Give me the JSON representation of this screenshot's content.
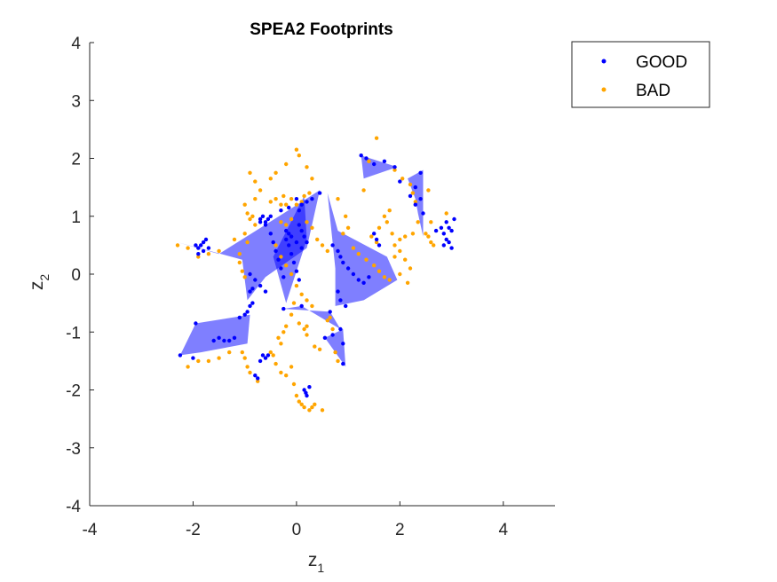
{
  "chart_data": {
    "type": "scatter",
    "title": "SPEA2 Footprints",
    "xlabel": "z",
    "xlabel_sub": "1",
    "ylabel": "z",
    "ylabel_sub": "2",
    "xlim": [
      -4,
      5
    ],
    "ylim": [
      -4,
      4
    ],
    "xticks": [
      -4,
      -2,
      0,
      2,
      4
    ],
    "yticks": [
      -4,
      -3,
      -2,
      -1,
      0,
      1,
      2,
      3,
      4
    ],
    "grid": false,
    "legend": {
      "position": "top-right-outside",
      "entries": [
        "GOOD",
        "BAD"
      ]
    },
    "colors": {
      "GOOD": "#0000ff",
      "BAD": "#ffa500",
      "footprint_fill": "#0000ff",
      "footprint_opacity": 0.5
    },
    "footprints": [
      [
        [
          -2.3,
          0.55
        ],
        [
          -1.5,
          0.35
        ],
        [
          -0.25,
          1.05
        ],
        [
          0.45,
          1.45
        ],
        [
          0.2,
          0.45
        ],
        [
          -0.6,
          -0.05
        ],
        [
          -0.95,
          -0.45
        ],
        [
          -1.05,
          0.25
        ]
      ],
      [
        [
          -0.45,
          0.3
        ],
        [
          0.15,
          1.35
        ],
        [
          0.2,
          0.6
        ],
        [
          -0.2,
          -0.5
        ]
      ],
      [
        [
          0.6,
          1.4
        ],
        [
          0.8,
          0.75
        ],
        [
          1.75,
          0.3
        ],
        [
          1.95,
          -0.1
        ],
        [
          1.3,
          -0.45
        ],
        [
          0.75,
          -0.55
        ],
        [
          0.75,
          0.1
        ]
      ],
      [
        [
          -0.25,
          -0.6
        ],
        [
          0.65,
          -0.65
        ],
        [
          0.85,
          -0.95
        ],
        [
          0.1,
          -0.55
        ]
      ],
      [
        [
          -2.25,
          -1.4
        ],
        [
          -1.95,
          -0.85
        ],
        [
          -0.9,
          -0.7
        ],
        [
          -0.95,
          -1.2
        ],
        [
          -1.85,
          -1.35
        ]
      ],
      [
        [
          0.55,
          -1.1
        ],
        [
          0.9,
          -0.95
        ],
        [
          0.95,
          -1.6
        ]
      ],
      [
        [
          1.25,
          2.05
        ],
        [
          1.95,
          1.85
        ],
        [
          1.3,
          1.65
        ]
      ],
      [
        [
          2.15,
          1.65
        ],
        [
          2.3,
          1.3
        ],
        [
          2.35,
          1.05
        ],
        [
          2.45,
          0.65
        ],
        [
          2.45,
          1.8
        ]
      ]
    ],
    "series": [
      {
        "name": "GOOD",
        "points": [
          [
            -1.9,
            0.45
          ],
          [
            -1.85,
            0.5
          ],
          [
            -1.8,
            0.55
          ],
          [
            -1.75,
            0.6
          ],
          [
            -1.7,
            0.45
          ],
          [
            -1.8,
            0.4
          ],
          [
            -1.9,
            0.35
          ],
          [
            -1.95,
            0.5
          ],
          [
            -0.7,
            0.95
          ],
          [
            -0.65,
            1.0
          ],
          [
            -0.6,
            0.9
          ],
          [
            -0.55,
            0.95
          ],
          [
            -0.5,
            1.0
          ],
          [
            -0.7,
            0.9
          ],
          [
            -0.6,
            0.85
          ],
          [
            -0.5,
            0.7
          ],
          [
            -0.45,
            0.55
          ],
          [
            -0.4,
            0.4
          ],
          [
            -0.35,
            0.25
          ],
          [
            -0.3,
            0.1
          ],
          [
            -0.25,
            -0.05
          ],
          [
            -0.2,
            0.6
          ],
          [
            -0.15,
            0.5
          ],
          [
            -0.1,
            0.35
          ],
          [
            -0.05,
            0.2
          ],
          [
            0.0,
            0.05
          ],
          [
            0.05,
            -0.1
          ],
          [
            -0.2,
            0.75
          ],
          [
            -0.15,
            0.7
          ],
          [
            -0.1,
            0.65
          ],
          [
            0.0,
            0.55
          ],
          [
            0.1,
            0.45
          ],
          [
            -0.9,
            0.0
          ],
          [
            -0.8,
            -0.1
          ],
          [
            -0.7,
            -0.2
          ],
          [
            -0.6,
            -0.3
          ],
          [
            -0.9,
            -0.3
          ],
          [
            -0.85,
            -0.25
          ],
          [
            0.0,
            1.3
          ],
          [
            0.1,
            1.2
          ],
          [
            0.05,
            1.1
          ],
          [
            0.2,
            1.25
          ],
          [
            0.3,
            1.3
          ],
          [
            0.45,
            1.4
          ],
          [
            -0.3,
            1.1
          ],
          [
            -0.15,
            1.15
          ],
          [
            0.05,
            0.85
          ],
          [
            0.1,
            0.75
          ],
          [
            0.15,
            0.65
          ],
          [
            0.2,
            0.55
          ],
          [
            0.7,
            0.5
          ],
          [
            0.8,
            0.4
          ],
          [
            0.85,
            0.3
          ],
          [
            0.9,
            0.2
          ],
          [
            1.0,
            0.1
          ],
          [
            1.1,
            0.0
          ],
          [
            1.2,
            -0.1
          ],
          [
            1.3,
            -0.15
          ],
          [
            1.4,
            -0.05
          ],
          [
            0.8,
            -0.3
          ],
          [
            0.85,
            -0.45
          ],
          [
            0.95,
            -0.55
          ],
          [
            1.5,
            0.7
          ],
          [
            1.55,
            0.6
          ],
          [
            1.6,
            0.5
          ],
          [
            1.25,
            2.05
          ],
          [
            1.35,
            2.0
          ],
          [
            1.5,
            1.9
          ],
          [
            1.7,
            1.95
          ],
          [
            1.9,
            1.85
          ],
          [
            2.0,
            1.6
          ],
          [
            2.3,
            1.5
          ],
          [
            2.4,
            1.3
          ],
          [
            2.45,
            1.05
          ],
          [
            2.3,
            1.2
          ],
          [
            2.2,
            1.35
          ],
          [
            2.4,
            1.75
          ],
          [
            2.8,
            0.8
          ],
          [
            2.85,
            0.7
          ],
          [
            2.9,
            0.9
          ],
          [
            2.95,
            0.8
          ],
          [
            3.0,
            0.75
          ],
          [
            3.05,
            0.95
          ],
          [
            2.9,
            0.6
          ],
          [
            2.85,
            0.5
          ],
          [
            2.95,
            0.55
          ],
          [
            3.0,
            0.45
          ],
          [
            2.7,
            0.75
          ],
          [
            -2.25,
            -1.4
          ],
          [
            -2.0,
            -1.45
          ],
          [
            -1.95,
            -0.85
          ],
          [
            -1.6,
            -1.15
          ],
          [
            -1.5,
            -1.1
          ],
          [
            -1.4,
            -1.15
          ],
          [
            -1.3,
            -1.15
          ],
          [
            -1.2,
            -1.1
          ],
          [
            -1.1,
            -0.75
          ],
          [
            -1.0,
            -0.7
          ],
          [
            -0.95,
            -0.65
          ],
          [
            -0.9,
            -0.55
          ],
          [
            -0.85,
            -0.5
          ],
          [
            -0.65,
            -1.4
          ],
          [
            -0.6,
            -1.45
          ],
          [
            -0.55,
            -1.4
          ],
          [
            -0.7,
            -1.5
          ],
          [
            -0.8,
            -1.75
          ],
          [
            -0.75,
            -1.8
          ],
          [
            0.15,
            -2.0
          ],
          [
            0.2,
            -2.1
          ],
          [
            0.25,
            -1.95
          ],
          [
            0.18,
            -2.05
          ],
          [
            0.55,
            -1.1
          ],
          [
            0.7,
            -1.05
          ],
          [
            0.9,
            -1.2
          ],
          [
            0.9,
            -1.55
          ],
          [
            0.85,
            -0.95
          ],
          [
            -0.25,
            -0.6
          ],
          [
            0.1,
            -0.55
          ],
          [
            0.65,
            -0.65
          ]
        ]
      },
      {
        "name": "BAD",
        "points": [
          [
            -2.3,
            0.5
          ],
          [
            -2.1,
            0.45
          ],
          [
            -1.9,
            0.3
          ],
          [
            -1.7,
            0.35
          ],
          [
            -1.5,
            0.4
          ],
          [
            -1.2,
            0.6
          ],
          [
            -1.1,
            0.2
          ],
          [
            -1.05,
            0.05
          ],
          [
            -1.0,
            -0.05
          ],
          [
            -1.1,
            0.35
          ],
          [
            -0.95,
            0.55
          ],
          [
            -1.0,
            0.7
          ],
          [
            -0.9,
            0.95
          ],
          [
            -0.85,
            1.0
          ],
          [
            -0.8,
            0.85
          ],
          [
            -0.95,
            1.05
          ],
          [
            -1.0,
            1.2
          ],
          [
            -0.8,
            1.3
          ],
          [
            -0.7,
            1.45
          ],
          [
            -0.5,
            1.25
          ],
          [
            -0.4,
            1.3
          ],
          [
            -0.25,
            1.35
          ],
          [
            -0.1,
            1.3
          ],
          [
            0.0,
            1.2
          ],
          [
            0.1,
            1.25
          ],
          [
            0.15,
            1.35
          ],
          [
            0.25,
            1.4
          ],
          [
            -0.3,
            1.2
          ],
          [
            -0.2,
            1.2
          ],
          [
            -0.3,
            0.9
          ],
          [
            -0.2,
            0.85
          ],
          [
            -0.1,
            0.95
          ],
          [
            0.2,
            0.9
          ],
          [
            0.3,
            0.8
          ],
          [
            0.4,
            0.6
          ],
          [
            0.5,
            0.5
          ],
          [
            0.6,
            0.4
          ],
          [
            -0.4,
            0.5
          ],
          [
            -0.3,
            0.3
          ],
          [
            -0.2,
            0.15
          ],
          [
            -0.1,
            0.0
          ],
          [
            0.0,
            -0.2
          ],
          [
            0.1,
            -0.35
          ],
          [
            0.2,
            -0.45
          ],
          [
            0.3,
            -0.55
          ],
          [
            0.0,
            2.15
          ],
          [
            0.05,
            2.05
          ],
          [
            -0.2,
            1.9
          ],
          [
            -0.4,
            1.75
          ],
          [
            -0.5,
            1.65
          ],
          [
            -0.8,
            1.6
          ],
          [
            -0.9,
            1.75
          ],
          [
            0.2,
            1.85
          ],
          [
            0.3,
            1.65
          ],
          [
            -0.1,
            -0.7
          ],
          [
            0.05,
            -0.85
          ],
          [
            0.2,
            -0.9
          ],
          [
            -0.05,
            -0.5
          ],
          [
            0.8,
            1.3
          ],
          [
            0.95,
            1.0
          ],
          [
            1.0,
            0.8
          ],
          [
            0.9,
            0.7
          ],
          [
            1.1,
            0.45
          ],
          [
            1.2,
            0.35
          ],
          [
            1.35,
            0.25
          ],
          [
            1.5,
            0.15
          ],
          [
            1.6,
            0.05
          ],
          [
            1.7,
            -0.05
          ],
          [
            1.8,
            -0.1
          ],
          [
            1.9,
            0.3
          ],
          [
            2.0,
            0.4
          ],
          [
            2.1,
            0.25
          ],
          [
            2.0,
            0.0
          ],
          [
            2.15,
            -0.15
          ],
          [
            2.2,
            0.1
          ],
          [
            1.9,
            0.5
          ],
          [
            2.0,
            0.6
          ],
          [
            1.85,
            0.7
          ],
          [
            2.1,
            0.65
          ],
          [
            2.25,
            0.7
          ],
          [
            1.7,
            1.0
          ],
          [
            1.75,
            0.9
          ],
          [
            1.8,
            1.1
          ],
          [
            1.3,
            1.45
          ],
          [
            1.55,
            2.35
          ],
          [
            1.4,
            1.95
          ],
          [
            1.9,
            1.8
          ],
          [
            2.05,
            1.65
          ],
          [
            2.2,
            1.55
          ],
          [
            2.25,
            1.4
          ],
          [
            2.3,
            1.25
          ],
          [
            2.35,
            0.9
          ],
          [
            2.5,
            0.7
          ],
          [
            2.55,
            0.65
          ],
          [
            2.6,
            0.9
          ],
          [
            2.6,
            0.55
          ],
          [
            2.65,
            0.5
          ],
          [
            2.55,
            1.45
          ],
          [
            2.9,
            1.05
          ],
          [
            1.55,
            0.55
          ],
          [
            1.45,
            0.65
          ],
          [
            1.6,
            0.8
          ],
          [
            -1.9,
            -1.5
          ],
          [
            -1.7,
            -1.5
          ],
          [
            -1.5,
            -1.45
          ],
          [
            -1.3,
            -1.35
          ],
          [
            -2.1,
            -1.6
          ],
          [
            -1.0,
            -1.45
          ],
          [
            -0.95,
            -1.6
          ],
          [
            -0.9,
            -1.7
          ],
          [
            -0.75,
            -1.85
          ],
          [
            -1.05,
            -1.35
          ],
          [
            -0.5,
            -1.35
          ],
          [
            -0.45,
            -1.4
          ],
          [
            -0.4,
            -1.55
          ],
          [
            -0.3,
            -1.7
          ],
          [
            -0.2,
            -1.75
          ],
          [
            -0.1,
            -1.6
          ],
          [
            -0.3,
            -1.2
          ],
          [
            -0.25,
            -1.0
          ],
          [
            -0.2,
            -0.9
          ],
          [
            -0.35,
            -1.1
          ],
          [
            0.0,
            -2.1
          ],
          [
            0.05,
            -2.2
          ],
          [
            0.1,
            -2.25
          ],
          [
            0.15,
            -2.3
          ],
          [
            0.25,
            -2.35
          ],
          [
            0.3,
            -2.3
          ],
          [
            0.5,
            -2.35
          ],
          [
            0.35,
            -2.25
          ],
          [
            -0.05,
            -1.9
          ],
          [
            0.6,
            -0.8
          ],
          [
            0.65,
            -0.75
          ],
          [
            0.7,
            -0.95
          ],
          [
            0.35,
            -1.25
          ],
          [
            0.45,
            -1.3
          ],
          [
            0.8,
            -1.5
          ],
          [
            0.75,
            -1.35
          ],
          [
            0.15,
            -0.95
          ],
          [
            0.2,
            -1.05
          ]
        ]
      }
    ]
  }
}
